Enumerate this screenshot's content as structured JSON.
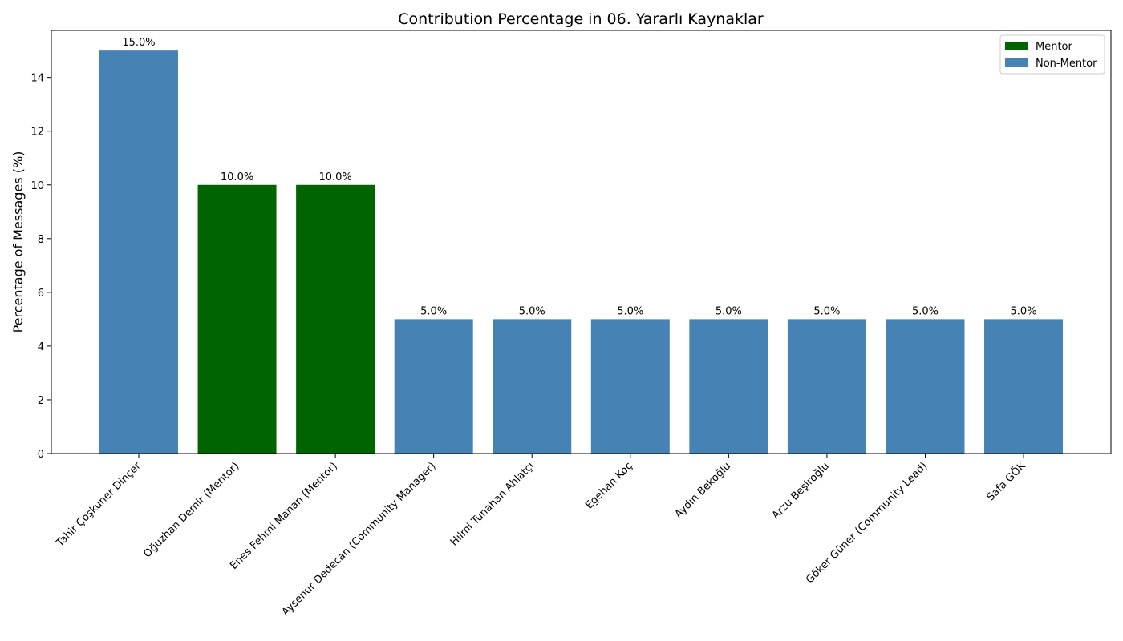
{
  "chart_data": {
    "type": "bar",
    "title": "Contribution Percentage in 06. Yararlı Kaynaklar",
    "xlabel": "",
    "ylabel": "Percentage of Messages (%)",
    "ylim": [
      0,
      15.75
    ],
    "yticks": [
      0,
      2,
      4,
      6,
      8,
      10,
      12,
      14
    ],
    "grid": false,
    "legend_position": "top-right",
    "categories": [
      "Tahir Çoşkuner Dinçer",
      "Oğuzhan Demir (Mentor)",
      "Enes Fehmi Manan (Mentor)",
      "Ayşenur Dedecan (Community Manager)",
      "Hilmi Tunahan Ahlatçı",
      "Egehan Koç",
      "Aydın Bekoğlu",
      "Arzu Beşiroğlu",
      "Göker Güner (Community Lead)",
      "Safa GÖK"
    ],
    "values": [
      15.0,
      10.0,
      10.0,
      5.0,
      5.0,
      5.0,
      5.0,
      5.0,
      5.0,
      5.0
    ],
    "value_labels": [
      "15.0%",
      "10.0%",
      "10.0%",
      "5.0%",
      "5.0%",
      "5.0%",
      "5.0%",
      "5.0%",
      "5.0%",
      "5.0%"
    ],
    "groups": [
      "Non-Mentor",
      "Mentor",
      "Mentor",
      "Non-Mentor",
      "Non-Mentor",
      "Non-Mentor",
      "Non-Mentor",
      "Non-Mentor",
      "Non-Mentor",
      "Non-Mentor"
    ],
    "legend": [
      {
        "name": "Mentor",
        "color": "#006400"
      },
      {
        "name": "Non-Mentor",
        "color": "#4682b4"
      }
    ]
  }
}
